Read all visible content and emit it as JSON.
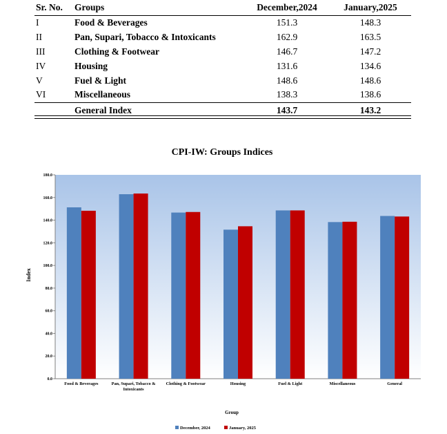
{
  "table": {
    "headers": {
      "sr": "Sr. No.",
      "groups": "Groups",
      "dec": "December,2024",
      "jan": "January,2025"
    },
    "rows": [
      {
        "sr": "I",
        "group": "Food & Beverages",
        "dec": "151.3",
        "jan": "148.3"
      },
      {
        "sr": "II",
        "group": "Pan, Supari, Tobacco & Intoxicants",
        "dec": "162.9",
        "jan": "163.5"
      },
      {
        "sr": "III",
        "group": "Clothing & Footwear",
        "dec": "146.7",
        "jan": "147.2"
      },
      {
        "sr": "IV",
        "group": "Housing",
        "dec": "131.6",
        "jan": "134.6"
      },
      {
        "sr": "V",
        "group": "Fuel & Light",
        "dec": "148.6",
        "jan": "148.6"
      },
      {
        "sr": "VI",
        "group": "Miscellaneous",
        "dec": "138.3",
        "jan": "138.6"
      }
    ],
    "total": {
      "group": "General Index",
      "dec": "143.7",
      "jan": "143.2"
    }
  },
  "colors": {
    "december": "#4f81bd",
    "january": "#c00000",
    "plot_top": "#a9c4e8",
    "plot_bottom": "#ffffff"
  },
  "chart_data": {
    "type": "bar",
    "title": "CPI-IW: Groups Indices",
    "xlabel": "Group",
    "ylabel": "Index",
    "ylim": [
      0,
      180
    ],
    "yticks": [
      "0.0",
      "20.0",
      "40.0",
      "60.0",
      "80.0",
      "100.0",
      "120.0",
      "140.0",
      "160.0",
      "180.0"
    ],
    "categories": [
      [
        "Food & Beverages"
      ],
      [
        "Pan, Supari, Tobacco &",
        "Intoxicants"
      ],
      [
        "Clothing & Footwear"
      ],
      [
        "Housing"
      ],
      [
        "Fuel & Light"
      ],
      [
        "Miscellaneous"
      ],
      [
        "General"
      ]
    ],
    "series": [
      {
        "name": "December, 2024",
        "values": [
          151.3,
          162.9,
          146.7,
          131.6,
          148.6,
          138.3,
          143.7
        ]
      },
      {
        "name": "January, 2025",
        "values": [
          148.3,
          163.5,
          147.2,
          134.6,
          148.6,
          138.6,
          143.2
        ]
      }
    ],
    "legend_position": "bottom-center"
  }
}
